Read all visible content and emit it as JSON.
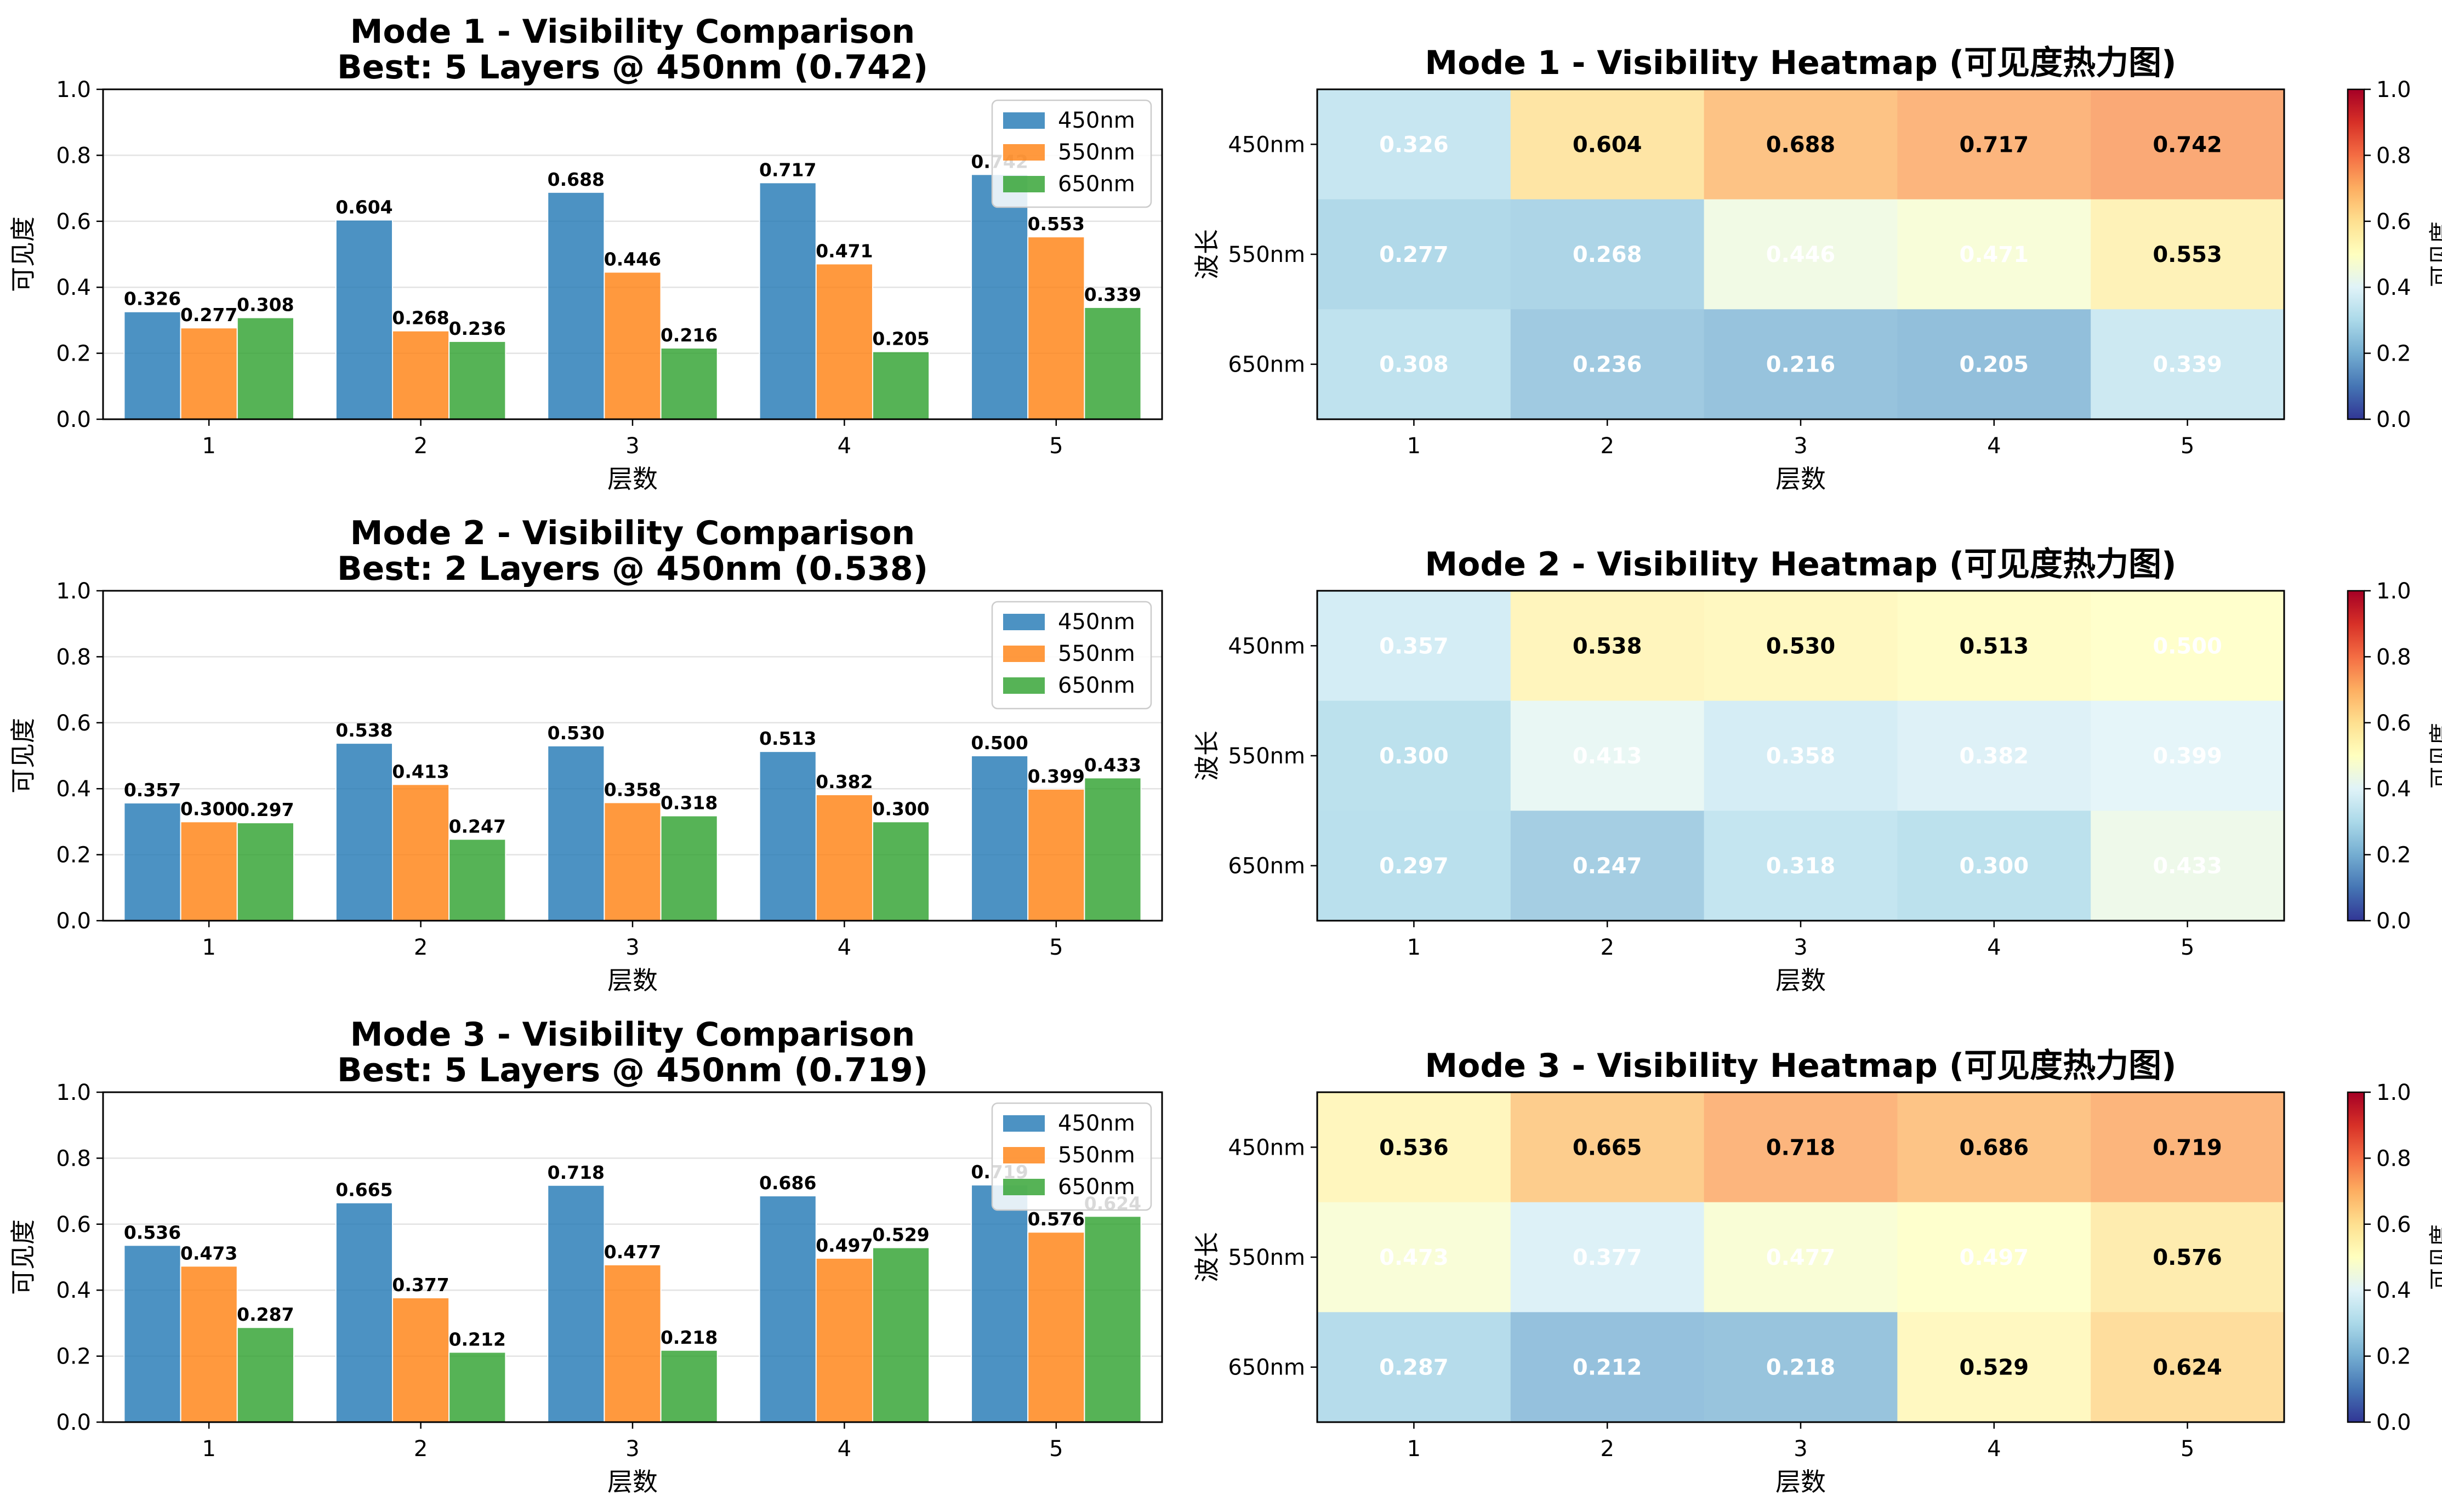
{
  "figure": {
    "colors": {
      "450nm": "#1f77b4",
      "550nm": "#ff7f0e",
      "650nm": "#2ca02c"
    },
    "colormap": "RdYlBu_r"
  },
  "chart_data": [
    {
      "type": "bar",
      "title": "Mode 1 - Visibility Comparison",
      "subtitle": "Best: 5 Layers @ 450nm (0.742)",
      "xlabel": "层数",
      "ylabel": "可见度",
      "categories": [
        "1",
        "2",
        "3",
        "4",
        "5"
      ],
      "ylim": [
        0,
        1.0
      ],
      "yticks": [
        "0.0",
        "0.2",
        "0.4",
        "0.6",
        "0.8",
        "1.0"
      ],
      "grid": true,
      "legend": "top-right",
      "series": [
        {
          "name": "450nm",
          "values": [
            0.326,
            0.604,
            0.688,
            0.717,
            0.742
          ],
          "labels": [
            "0.326",
            "0.604",
            "0.688",
            "0.717",
            "0.742"
          ]
        },
        {
          "name": "550nm",
          "values": [
            0.277,
            0.268,
            0.446,
            0.471,
            0.553
          ],
          "labels": [
            "0.277",
            "0.268",
            "0.446",
            "0.471",
            "0.553"
          ]
        },
        {
          "name": "650nm",
          "values": [
            0.308,
            0.236,
            0.216,
            0.205,
            0.339
          ],
          "labels": [
            "0.308",
            "0.236",
            "0.216",
            "0.205",
            "0.339"
          ]
        }
      ]
    },
    {
      "type": "heatmap",
      "title": "Mode 1 - Visibility Heatmap (可见度热力图)",
      "xlabel": "层数",
      "ylabel": "波长",
      "x": [
        "1",
        "2",
        "3",
        "4",
        "5"
      ],
      "y": [
        "450nm",
        "550nm",
        "650nm"
      ],
      "values": [
        [
          0.326,
          0.604,
          0.688,
          0.717,
          0.742
        ],
        [
          0.277,
          0.268,
          0.446,
          0.471,
          0.553
        ],
        [
          0.308,
          0.236,
          0.216,
          0.205,
          0.339
        ]
      ],
      "labels": [
        [
          "0.326",
          "0.604",
          "0.688",
          "0.717",
          "0.742"
        ],
        [
          "0.277",
          "0.268",
          "0.446",
          "0.471",
          "0.553"
        ],
        [
          "0.308",
          "0.236",
          "0.216",
          "0.205",
          "0.339"
        ]
      ],
      "colorbar": {
        "label": "可见度",
        "range": [
          0,
          1.0
        ],
        "ticks": [
          "0.0",
          "0.2",
          "0.4",
          "0.6",
          "0.8",
          "1.0"
        ]
      }
    },
    {
      "type": "bar",
      "title": "Mode 2 - Visibility Comparison",
      "subtitle": "Best: 2 Layers @ 450nm (0.538)",
      "xlabel": "层数",
      "ylabel": "可见度",
      "categories": [
        "1",
        "2",
        "3",
        "4",
        "5"
      ],
      "ylim": [
        0,
        1.0
      ],
      "yticks": [
        "0.0",
        "0.2",
        "0.4",
        "0.6",
        "0.8",
        "1.0"
      ],
      "grid": true,
      "legend": "top-right",
      "series": [
        {
          "name": "450nm",
          "values": [
            0.357,
            0.538,
            0.53,
            0.513,
            0.5
          ],
          "labels": [
            "0.357",
            "0.538",
            "0.530",
            "0.513",
            "0.500"
          ]
        },
        {
          "name": "550nm",
          "values": [
            0.3,
            0.413,
            0.358,
            0.382,
            0.399
          ],
          "labels": [
            "0.300",
            "0.413",
            "0.358",
            "0.382",
            "0.399"
          ]
        },
        {
          "name": "650nm",
          "values": [
            0.297,
            0.247,
            0.318,
            0.3,
            0.433
          ],
          "labels": [
            "0.297",
            "0.247",
            "0.318",
            "0.300",
            "0.433"
          ]
        }
      ]
    },
    {
      "type": "heatmap",
      "title": "Mode 2 - Visibility Heatmap (可见度热力图)",
      "xlabel": "层数",
      "ylabel": "波长",
      "x": [
        "1",
        "2",
        "3",
        "4",
        "5"
      ],
      "y": [
        "450nm",
        "550nm",
        "650nm"
      ],
      "values": [
        [
          0.357,
          0.538,
          0.53,
          0.513,
          0.5
        ],
        [
          0.3,
          0.413,
          0.358,
          0.382,
          0.399
        ],
        [
          0.297,
          0.247,
          0.318,
          0.3,
          0.433
        ]
      ],
      "labels": [
        [
          "0.357",
          "0.538",
          "0.530",
          "0.513",
          "0.500"
        ],
        [
          "0.300",
          "0.413",
          "0.358",
          "0.382",
          "0.399"
        ],
        [
          "0.297",
          "0.247",
          "0.318",
          "0.300",
          "0.433"
        ]
      ],
      "colorbar": {
        "label": "可见度",
        "range": [
          0,
          1.0
        ],
        "ticks": [
          "0.0",
          "0.2",
          "0.4",
          "0.6",
          "0.8",
          "1.0"
        ]
      }
    },
    {
      "type": "bar",
      "title": "Mode 3 - Visibility Comparison",
      "subtitle": "Best: 5 Layers @ 450nm (0.719)",
      "xlabel": "层数",
      "ylabel": "可见度",
      "categories": [
        "1",
        "2",
        "3",
        "4",
        "5"
      ],
      "ylim": [
        0,
        1.0
      ],
      "yticks": [
        "0.0",
        "0.2",
        "0.4",
        "0.6",
        "0.8",
        "1.0"
      ],
      "grid": true,
      "legend": "top-right",
      "series": [
        {
          "name": "450nm",
          "values": [
            0.536,
            0.665,
            0.718,
            0.686,
            0.719
          ],
          "labels": [
            "0.536",
            "0.665",
            "0.718",
            "0.686",
            "0.719"
          ]
        },
        {
          "name": "550nm",
          "values": [
            0.473,
            0.377,
            0.477,
            0.497,
            0.576
          ],
          "labels": [
            "0.473",
            "0.377",
            "0.477",
            "0.497",
            "0.576"
          ]
        },
        {
          "name": "650nm",
          "values": [
            0.287,
            0.212,
            0.218,
            0.529,
            0.624
          ],
          "labels": [
            "0.287",
            "0.212",
            "0.218",
            "0.529",
            "0.624"
          ]
        }
      ]
    },
    {
      "type": "heatmap",
      "title": "Mode 3 - Visibility Heatmap (可见度热力图)",
      "xlabel": "层数",
      "ylabel": "波长",
      "x": [
        "1",
        "2",
        "3",
        "4",
        "5"
      ],
      "y": [
        "450nm",
        "550nm",
        "650nm"
      ],
      "values": [
        [
          0.536,
          0.665,
          0.718,
          0.686,
          0.719
        ],
        [
          0.473,
          0.377,
          0.477,
          0.497,
          0.576
        ],
        [
          0.287,
          0.212,
          0.218,
          0.529,
          0.624
        ]
      ],
      "labels": [
        [
          "0.536",
          "0.665",
          "0.718",
          "0.686",
          "0.719"
        ],
        [
          "0.473",
          "0.377",
          "0.477",
          "0.497",
          "0.576"
        ],
        [
          "0.287",
          "0.212",
          "0.218",
          "0.529",
          "0.624"
        ]
      ],
      "colorbar": {
        "label": "可见度",
        "range": [
          0,
          1.0
        ],
        "ticks": [
          "0.0",
          "0.2",
          "0.4",
          "0.6",
          "0.8",
          "1.0"
        ]
      }
    }
  ]
}
